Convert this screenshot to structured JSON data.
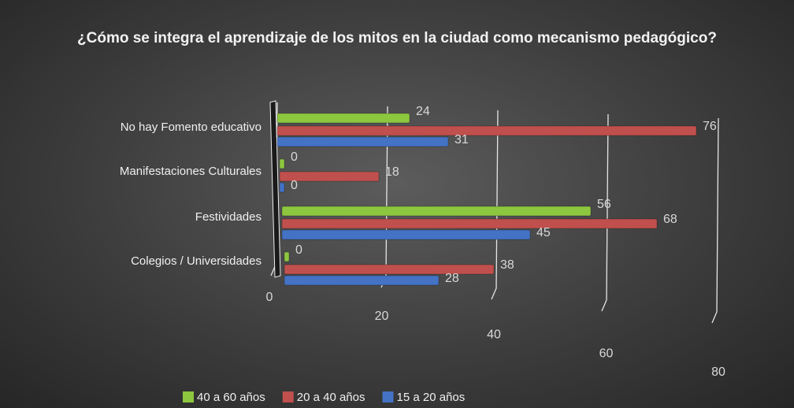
{
  "chart_data": {
    "type": "bar",
    "orientation": "horizontal",
    "title": "¿Cómo se integra el aprendizaje de los mitos en la ciudad como mecanismo pedagógico?",
    "categories": [
      "No hay Fomento educativo",
      "Manifestaciones Culturales",
      "Festividades",
      "Colegios / Universidades"
    ],
    "series": [
      {
        "name": "40 a 60 años",
        "color": "#8dc63f",
        "values": [
          24,
          0,
          56,
          0
        ]
      },
      {
        "name": "20 a 40 años",
        "color": "#c0504d",
        "values": [
          76,
          18,
          68,
          38
        ]
      },
      {
        "name": "15 a 20 años",
        "color": "#4472c4",
        "values": [
          31,
          0,
          45,
          28
        ]
      }
    ],
    "xlim": [
      0,
      80
    ],
    "xticks": [
      0,
      20,
      40,
      60,
      80
    ],
    "grid": true,
    "legend": "bottom"
  }
}
